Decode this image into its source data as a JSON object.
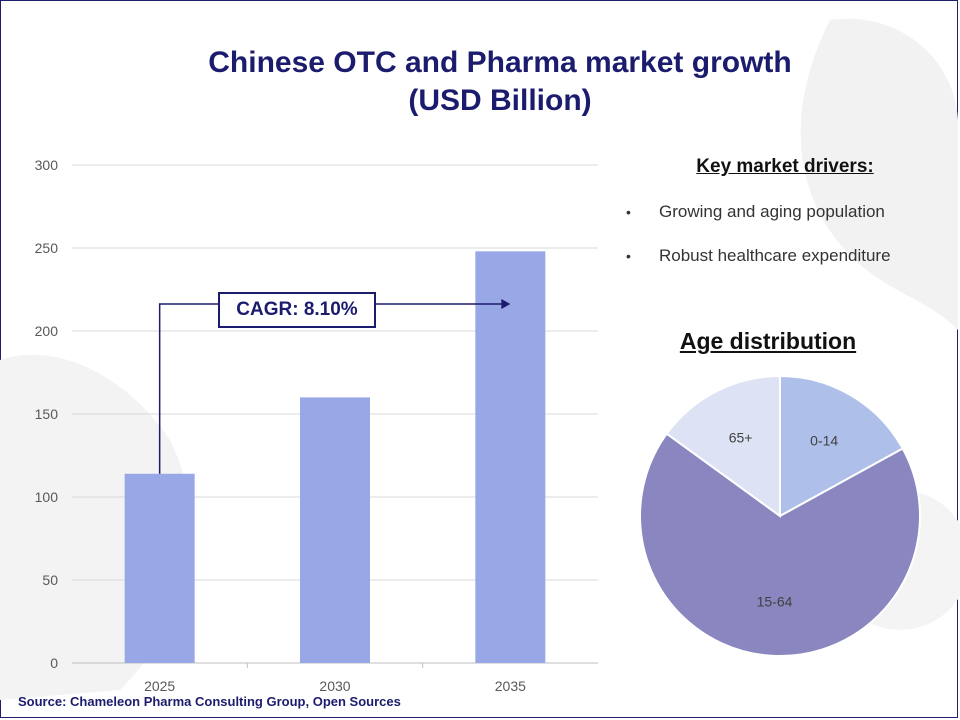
{
  "title": {
    "line1": "Chinese OTC and Pharma market growth",
    "line2": "(USD Billion)"
  },
  "annotation": {
    "cagr_label": "CAGR: 8.10%"
  },
  "drivers": {
    "heading": "Key market drivers:",
    "items": [
      "Growing and aging population",
      "Robust healthcare expenditure"
    ]
  },
  "pie_title": "Age distribution",
  "source": "Source: Chameleon Pharma Consulting Group, Open Sources",
  "chart_data": [
    {
      "type": "bar",
      "categories": [
        "2025",
        "2030",
        "2035"
      ],
      "values": [
        114,
        160,
        248
      ],
      "ylim": [
        0,
        300
      ],
      "yticks": [
        0,
        50,
        100,
        150,
        200,
        250,
        300
      ],
      "grid": true,
      "color": "#98a8e6"
    },
    {
      "type": "pie",
      "title": "Age distribution",
      "categories": [
        "0-14",
        "15-64",
        "65+"
      ],
      "values": [
        17,
        68,
        15
      ],
      "colors": [
        "#aec0ea",
        "#8a86c0",
        "#dde3f5"
      ]
    }
  ]
}
